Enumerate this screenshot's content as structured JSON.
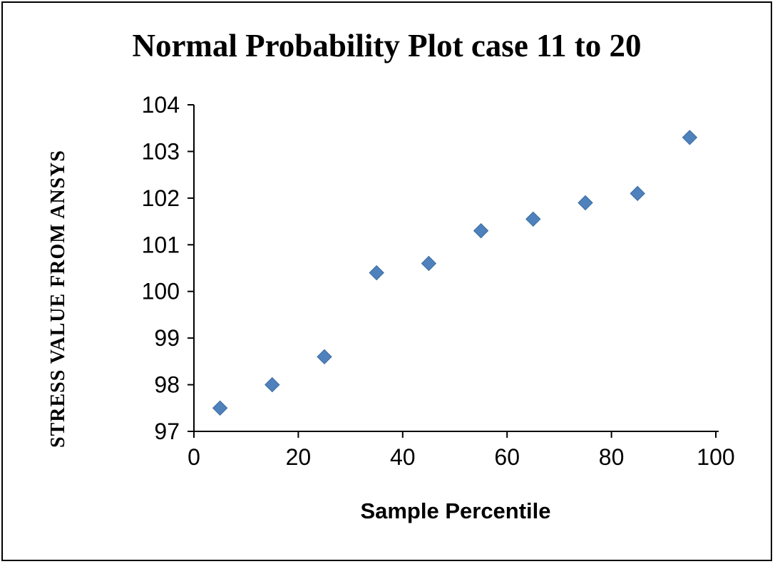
{
  "window": {
    "background_color": "#ffffff",
    "border_color": "#000000"
  },
  "chart_data": {
    "type": "scatter",
    "title": "Normal Probability Plot case 11 to 20",
    "xlabel": "Sample Percentile",
    "ylabel": "STRESS VALUE FROM ANSYS",
    "xlim": [
      0,
      100
    ],
    "ylim": [
      97,
      104
    ],
    "x_ticks": [
      0,
      20,
      40,
      60,
      80,
      100
    ],
    "y_ticks": [
      97,
      98,
      99,
      100,
      101,
      102,
      103,
      104
    ],
    "grid": false,
    "legend": "none",
    "marker": {
      "shape": "diamond",
      "fill": "#4F81BD",
      "stroke": "#3A6B9E",
      "size": 10
    },
    "points": [
      {
        "x": 5,
        "y": 97.5
      },
      {
        "x": 15,
        "y": 98.0
      },
      {
        "x": 25,
        "y": 98.6
      },
      {
        "x": 35,
        "y": 100.4
      },
      {
        "x": 45,
        "y": 100.6
      },
      {
        "x": 55,
        "y": 101.3
      },
      {
        "x": 65,
        "y": 101.55
      },
      {
        "x": 75,
        "y": 101.9
      },
      {
        "x": 85,
        "y": 102.1
      },
      {
        "x": 95,
        "y": 103.3
      }
    ]
  }
}
